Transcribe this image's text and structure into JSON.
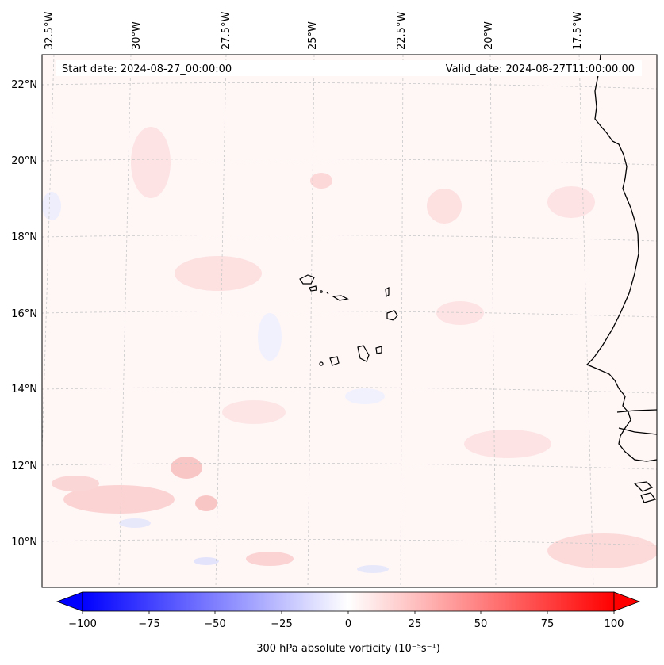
{
  "map": {
    "start_date_text": "Start date: 2024-08-27_00:00:00",
    "valid_date_text": "Valid_date: 2024-08-27T11:00:00.00",
    "lon_labels": [
      "32.5°W",
      "30°W",
      "27.5°W",
      "25°W",
      "22.5°W",
      "20°W",
      "17.5°W"
    ],
    "lat_labels": [
      "22°N",
      "20°N",
      "18°N",
      "16°N",
      "14°N",
      "12°N",
      "10°N"
    ],
    "gridlines": true,
    "field": "300 hPa absolute vorticity",
    "colors": {
      "coastline": "#000000",
      "background_tint": "#fff6f6",
      "gridline": "#c8c8c8"
    }
  },
  "colorbar": {
    "label": "300 hPa absolute vorticity (10⁻⁵s⁻¹)",
    "ticks": [
      "−100",
      "−75",
      "−50",
      "−25",
      "0",
      "25",
      "50",
      "75",
      "100"
    ],
    "min": -100,
    "max": 100,
    "colormap": "bwr",
    "colors": {
      "low": "#0000ff",
      "mid": "#ffffff",
      "high": "#ff0000"
    }
  }
}
